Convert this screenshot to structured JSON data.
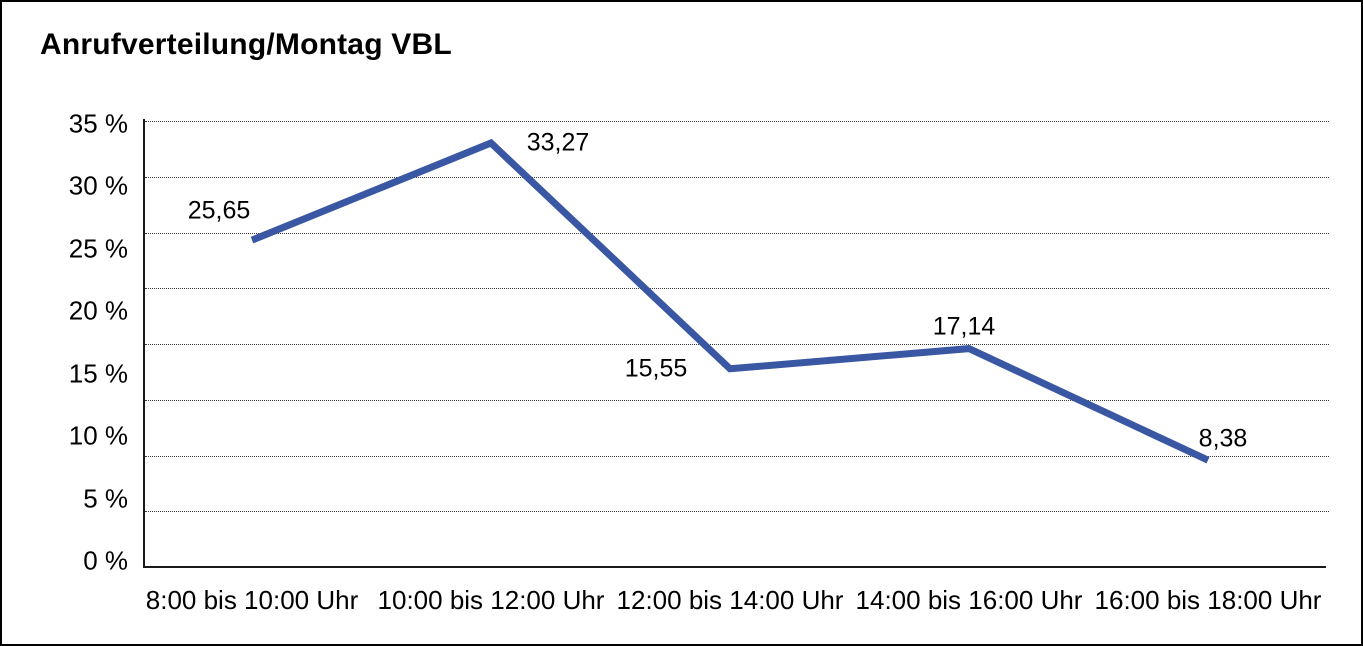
{
  "title": "Anrufverteilung/Montag VBL",
  "chart_data": {
    "type": "line",
    "title": "Anrufverteilung/Montag VBL",
    "categories": [
      "8:00 bis 10:00 Uhr",
      "10:00 bis 12:00 Uhr",
      "12:00 bis 14:00 Uhr",
      "14:00 bis 16:00 Uhr",
      "16:00 bis 18:00 Uhr"
    ],
    "values": [
      25.65,
      33.27,
      15.55,
      17.14,
      8.38
    ],
    "point_labels": [
      "25,65",
      "33,27",
      "15,55",
      "17,14",
      "8,38"
    ],
    "xlabel": "",
    "ylabel": "",
    "ylim": [
      0,
      35
    ],
    "ytick_labels": [
      "35 %",
      "30 %",
      "25 %",
      "20 %",
      "15 %",
      "10 %",
      "5 %",
      "0 %"
    ],
    "grid": "horizontal-dotted",
    "legend_position": "none",
    "line_color": "#3A57A4",
    "axis_color": "#1a1a1a",
    "text_color": "#000000"
  }
}
